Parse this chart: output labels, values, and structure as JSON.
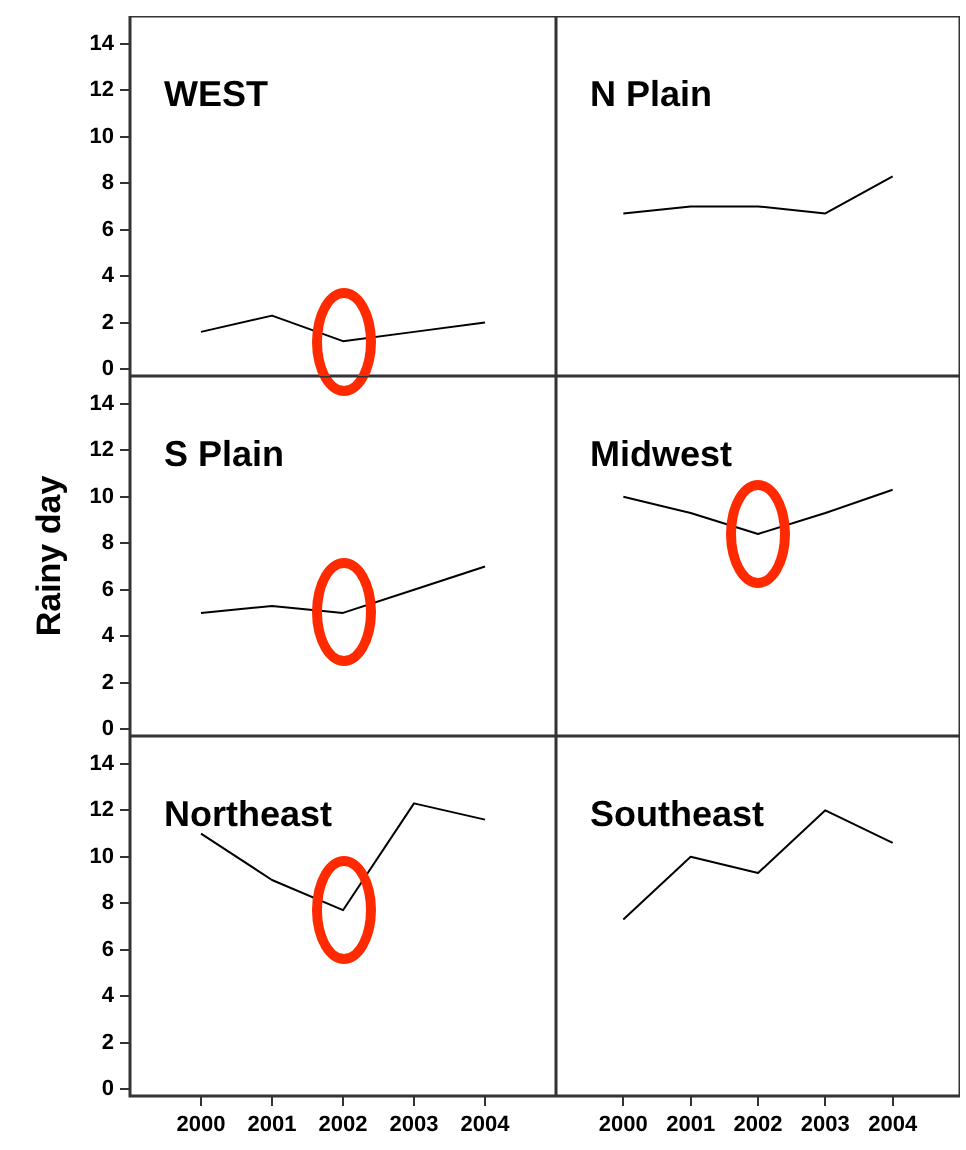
{
  "chart_data": [
    {
      "type": "line",
      "title": "WEST",
      "x": [
        2000,
        2001,
        2002,
        2003,
        2004
      ],
      "series": [
        {
          "color": "#000000",
          "values": [
            1.6,
            2.3,
            1.2,
            1.6,
            2.0
          ]
        }
      ],
      "xlim": [
        1999,
        2005
      ],
      "xticks": [
        2000,
        2001,
        2002,
        2003,
        2004
      ],
      "ylim": [
        -0.3,
        15.2
      ],
      "yticks": [
        0,
        2,
        4,
        6,
        8,
        10,
        12,
        14
      ],
      "tick_labels": "y",
      "legend": false,
      "grid": false
    },
    {
      "type": "line",
      "title": "N Plain",
      "x": [
        2000,
        2001,
        2002,
        2003,
        2004
      ],
      "series": [
        {
          "color": "#000000",
          "values": [
            6.7,
            7.0,
            7.0,
            6.7,
            8.3
          ]
        }
      ],
      "xlim": [
        1999,
        2005
      ],
      "xticks": [
        2000,
        2001,
        2002,
        2003,
        2004
      ],
      "ylim": [
        -0.3,
        15.2
      ],
      "yticks": [
        0,
        2,
        4,
        6,
        8,
        10,
        12,
        14
      ],
      "tick_labels": false,
      "legend": false,
      "grid": false
    },
    {
      "type": "line",
      "title": "S Plain",
      "ylabel": "Rainy day",
      "x": [
        2000,
        2001,
        2002,
        2003,
        2004
      ],
      "series": [
        {
          "color": "#000000",
          "values": [
            5.0,
            5.3,
            5.0,
            6.0,
            7.0
          ]
        }
      ],
      "xlim": [
        1999,
        2005
      ],
      "xticks": [
        2000,
        2001,
        2002,
        2003,
        2004
      ],
      "ylim": [
        -0.3,
        15.2
      ],
      "yticks": [
        0,
        2,
        4,
        6,
        8,
        10,
        12,
        14
      ],
      "tick_labels": "y",
      "legend": false,
      "grid": false
    },
    {
      "type": "line",
      "title": "Midwest",
      "x": [
        2000,
        2001,
        2002,
        2003,
        2004
      ],
      "series": [
        {
          "color": "#000000",
          "values": [
            10.0,
            9.3,
            8.4,
            9.3,
            10.3
          ]
        }
      ],
      "xlim": [
        1999,
        2005
      ],
      "xticks": [
        2000,
        2001,
        2002,
        2003,
        2004
      ],
      "ylim": [
        -0.3,
        15.2
      ],
      "yticks": [
        0,
        2,
        4,
        6,
        8,
        10,
        12,
        14
      ],
      "tick_labels": false,
      "legend": false,
      "grid": false
    },
    {
      "type": "line",
      "title": "Northeast",
      "x": [
        2000,
        2001,
        2002,
        2003,
        2004
      ],
      "series": [
        {
          "color": "#000000",
          "values": [
            11.0,
            9.0,
            7.7,
            12.3,
            11.6
          ]
        }
      ],
      "xlim": [
        1999,
        2005
      ],
      "xticks": [
        2000,
        2001,
        2002,
        2003,
        2004
      ],
      "ylim": [
        -0.3,
        15.2
      ],
      "yticks": [
        0,
        2,
        4,
        6,
        8,
        10,
        12,
        14
      ],
      "legend": false,
      "grid": false
    },
    {
      "type": "line",
      "title": "Southeast",
      "x": [
        2000,
        2001,
        2002,
        2003,
        2004
      ],
      "series": [
        {
          "color": "#000000",
          "values": [
            7.3,
            10.0,
            9.3,
            12.0,
            10.6
          ]
        }
      ],
      "xlim": [
        1999,
        2005
      ],
      "xticks": [
        2000,
        2001,
        2002,
        2003,
        2004
      ],
      "ylim": [
        -0.3,
        15.2
      ],
      "yticks": [
        0,
        2,
        4,
        6,
        8,
        10,
        12,
        14
      ],
      "tick_labels": "x",
      "legend": false,
      "grid": false
    }
  ]
}
